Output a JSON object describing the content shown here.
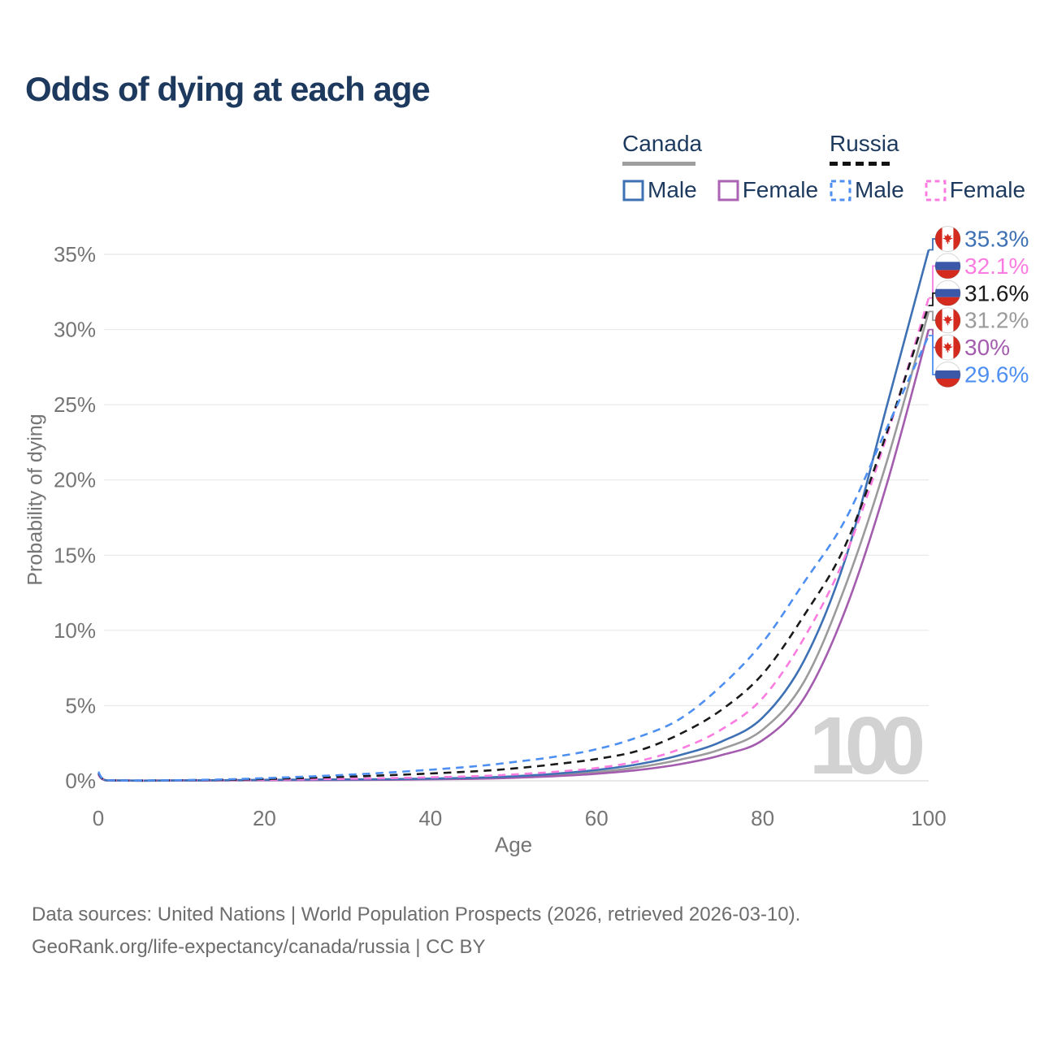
{
  "title": "Odds of dying at each age",
  "legend": {
    "canada": {
      "title": "Canada",
      "male": "Male",
      "female": "Female"
    },
    "russia": {
      "title": "Russia",
      "male": "Male",
      "female": "Female"
    }
  },
  "watermark": "100",
  "footer": {
    "line1": "Data sources: United Nations | World Population Prospects (2026, retrieved 2026-03-10).",
    "line2": "GeoRank.org/life-expectancy/canada/russia | CC BY"
  },
  "colors": {
    "canada_male": "#3e71b4",
    "canada_female": "#a45cae",
    "canada_total": "#9b9b9b",
    "russia_male": "#4e8ff2",
    "russia_female": "#fb7ce0",
    "russia_total": "#1a1a1a",
    "title_text": "#1d3a5e",
    "axis_text": "#757575",
    "grid": "#ebebeb",
    "flag_red": "#d52b1e",
    "flag_blue": "#3a57a8"
  },
  "chart_data": {
    "type": "line",
    "title": "Odds of dying at each age",
    "xlabel": "Age",
    "ylabel": "Probability of dying",
    "x_ticks": [
      0,
      20,
      40,
      60,
      80,
      100
    ],
    "y_ticks_percent": [
      0,
      5,
      10,
      15,
      20,
      25,
      30,
      35
    ],
    "xlim": [
      0,
      100
    ],
    "ylim_percent": [
      0,
      36
    ],
    "grid": "horizontal-only",
    "legend_position": "top-right",
    "ages": [
      0,
      1,
      5,
      15,
      25,
      35,
      45,
      50,
      55,
      60,
      65,
      70,
      75,
      80,
      85,
      90,
      95,
      100
    ],
    "series": [
      {
        "id": "canada-total",
        "name": "Canada",
        "style": "solid",
        "color": "#9b9b9b",
        "values_percent": [
          0.42,
          0.027,
          0.01,
          0.03,
          0.06,
          0.09,
          0.16,
          0.25,
          0.38,
          0.58,
          0.9,
          1.4,
          2.1,
          3.4,
          6.6,
          13.0,
          21.3,
          31.2
        ]
      },
      {
        "id": "canada-female",
        "name": "Canada Female",
        "style": "solid",
        "color": "#a45cae",
        "values_percent": [
          0.4,
          0.024,
          0.009,
          0.025,
          0.045,
          0.07,
          0.13,
          0.2,
          0.31,
          0.47,
          0.72,
          1.1,
          1.7,
          2.7,
          5.5,
          11.4,
          19.8,
          30.0
        ]
      },
      {
        "id": "canada-male",
        "name": "Canada Male",
        "style": "solid",
        "color": "#3e71b4",
        "values_percent": [
          0.45,
          0.03,
          0.01,
          0.04,
          0.08,
          0.11,
          0.2,
          0.3,
          0.47,
          0.72,
          1.1,
          1.7,
          2.6,
          4.2,
          8.0,
          14.8,
          25.0,
          35.3
        ]
      },
      {
        "id": "russia-female",
        "name": "Russia Female",
        "style": "dashed",
        "color": "#fb7ce0",
        "values_percent": [
          0.45,
          0.033,
          0.014,
          0.04,
          0.1,
          0.18,
          0.3,
          0.42,
          0.6,
          0.85,
          1.3,
          2.1,
          3.4,
          5.5,
          9.5,
          15.0,
          23.0,
          32.1
        ]
      },
      {
        "id": "russia-total",
        "name": "Russia",
        "style": "dashed",
        "color": "#1a1a1a",
        "values_percent": [
          0.52,
          0.04,
          0.017,
          0.065,
          0.19,
          0.37,
          0.62,
          0.82,
          1.1,
          1.45,
          2.0,
          3.1,
          4.7,
          7.1,
          11.0,
          15.7,
          23.2,
          31.6
        ]
      },
      {
        "id": "russia-male",
        "name": "Russia Male",
        "style": "dashed",
        "color": "#4e8ff2",
        "values_percent": [
          0.6,
          0.045,
          0.02,
          0.09,
          0.28,
          0.55,
          0.95,
          1.25,
          1.6,
          2.1,
          2.9,
          4.1,
          6.3,
          9.2,
          13.2,
          17.4,
          23.5,
          29.6
        ]
      }
    ],
    "end_labels": [
      {
        "series": "canada-male",
        "label": "35.3%",
        "flag": "canada",
        "color": "#3e71b4"
      },
      {
        "series": "russia-female",
        "label": "32.1%",
        "flag": "russia",
        "color": "#fb7ce0"
      },
      {
        "series": "russia-total",
        "label": "31.6%",
        "flag": "russia",
        "color": "#1a1a1a"
      },
      {
        "series": "canada-total",
        "label": "31.2%",
        "flag": "canada",
        "color": "#9b9b9b"
      },
      {
        "series": "canada-female",
        "label": "30%",
        "flag": "canada",
        "color": "#a45cae"
      },
      {
        "series": "russia-male",
        "label": "29.6%",
        "flag": "russia",
        "color": "#4e8ff2"
      }
    ]
  }
}
